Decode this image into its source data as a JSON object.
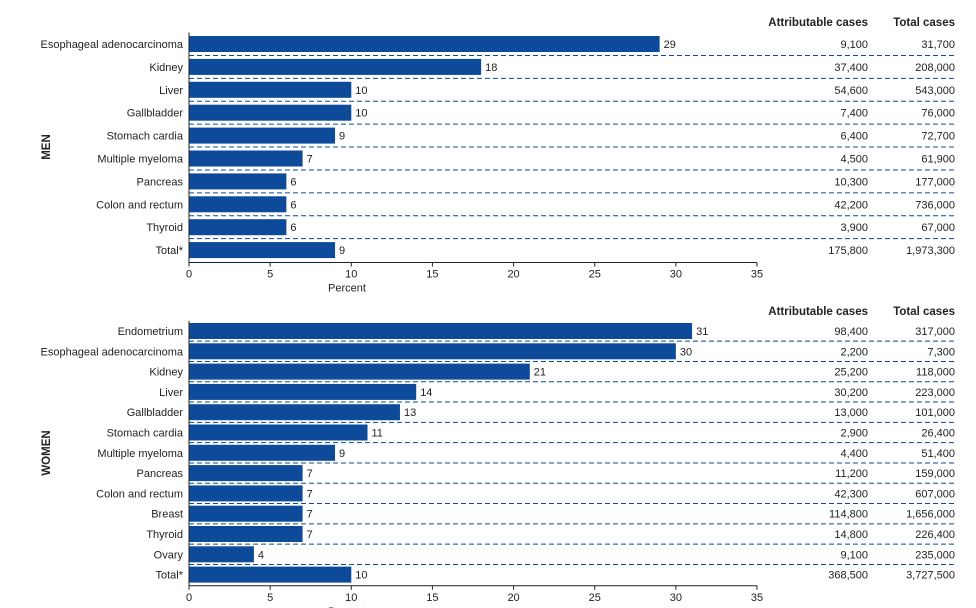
{
  "colors": {
    "bar": "#0d4a99",
    "dash": "#0d4a99",
    "axis": "#222222"
  },
  "columns": {
    "attributable": "Attributable cases",
    "total": "Total cases"
  },
  "chart_data": [
    {
      "type": "bar",
      "orientation": "horizontal",
      "group": "MEN",
      "xlabel": "Percent",
      "xlim": [
        0,
        35
      ],
      "xticks": [
        0,
        5,
        10,
        15,
        20,
        25,
        30,
        35
      ],
      "rows": [
        {
          "category": "Esophageal adenocarcinoma",
          "value": 29,
          "attributable": "9,100",
          "total": "31,700"
        },
        {
          "category": "Kidney",
          "value": 18,
          "attributable": "37,400",
          "total": "208,000"
        },
        {
          "category": "Liver",
          "value": 10,
          "attributable": "54,600",
          "total": "543,000"
        },
        {
          "category": "Gallbladder",
          "value": 10,
          "attributable": "7,400",
          "total": "76,000"
        },
        {
          "category": "Stomach cardia",
          "value": 9,
          "attributable": "6,400",
          "total": "72,700"
        },
        {
          "category": "Multiple myeloma",
          "value": 7,
          "attributable": "4,500",
          "total": "61,900"
        },
        {
          "category": "Pancreas",
          "value": 6,
          "attributable": "10,300",
          "total": "177,000"
        },
        {
          "category": "Colon and rectum",
          "value": 6,
          "attributable": "42,200",
          "total": "736,000"
        },
        {
          "category": "Thyroid",
          "value": 6,
          "attributable": "3,900",
          "total": "67,000"
        },
        {
          "category": "Total*",
          "value": 9,
          "attributable": "175,800",
          "total": "1,973,300"
        }
      ]
    },
    {
      "type": "bar",
      "orientation": "horizontal",
      "group": "WOMEN",
      "xlabel": "Percent",
      "xlim": [
        0,
        35
      ],
      "xticks": [
        0,
        5,
        10,
        15,
        20,
        25,
        30,
        35
      ],
      "rows": [
        {
          "category": "Endometrium",
          "value": 31,
          "attributable": "98,400",
          "total": "317,000"
        },
        {
          "category": "Esophageal adenocarcinoma",
          "value": 30,
          "attributable": "2,200",
          "total": "7,300"
        },
        {
          "category": "Kidney",
          "value": 21,
          "attributable": "25,200",
          "total": "118,000"
        },
        {
          "category": "Liver",
          "value": 14,
          "attributable": "30,200",
          "total": "223,000"
        },
        {
          "category": "Gallbladder",
          "value": 13,
          "attributable": "13,000",
          "total": "101,000"
        },
        {
          "category": "Stomach cardia",
          "value": 11,
          "attributable": "2,900",
          "total": "26,400"
        },
        {
          "category": "Multiple myeloma",
          "value": 9,
          "attributable": "4,400",
          "total": "51,400"
        },
        {
          "category": "Pancreas",
          "value": 7,
          "attributable": "11,200",
          "total": "159,000"
        },
        {
          "category": "Colon and rectum",
          "value": 7,
          "attributable": "42,300",
          "total": "607,000"
        },
        {
          "category": "Breast",
          "value": 7,
          "attributable": "114,800",
          "total": "1,656,000"
        },
        {
          "category": "Thyroid",
          "value": 7,
          "attributable": "14,800",
          "total": "226,400"
        },
        {
          "category": "Ovary",
          "value": 4,
          "attributable": "9,100",
          "total": "235,000"
        },
        {
          "category": "Total*",
          "value": 10,
          "attributable": "368,500",
          "total": "3,727,500"
        }
      ]
    }
  ]
}
